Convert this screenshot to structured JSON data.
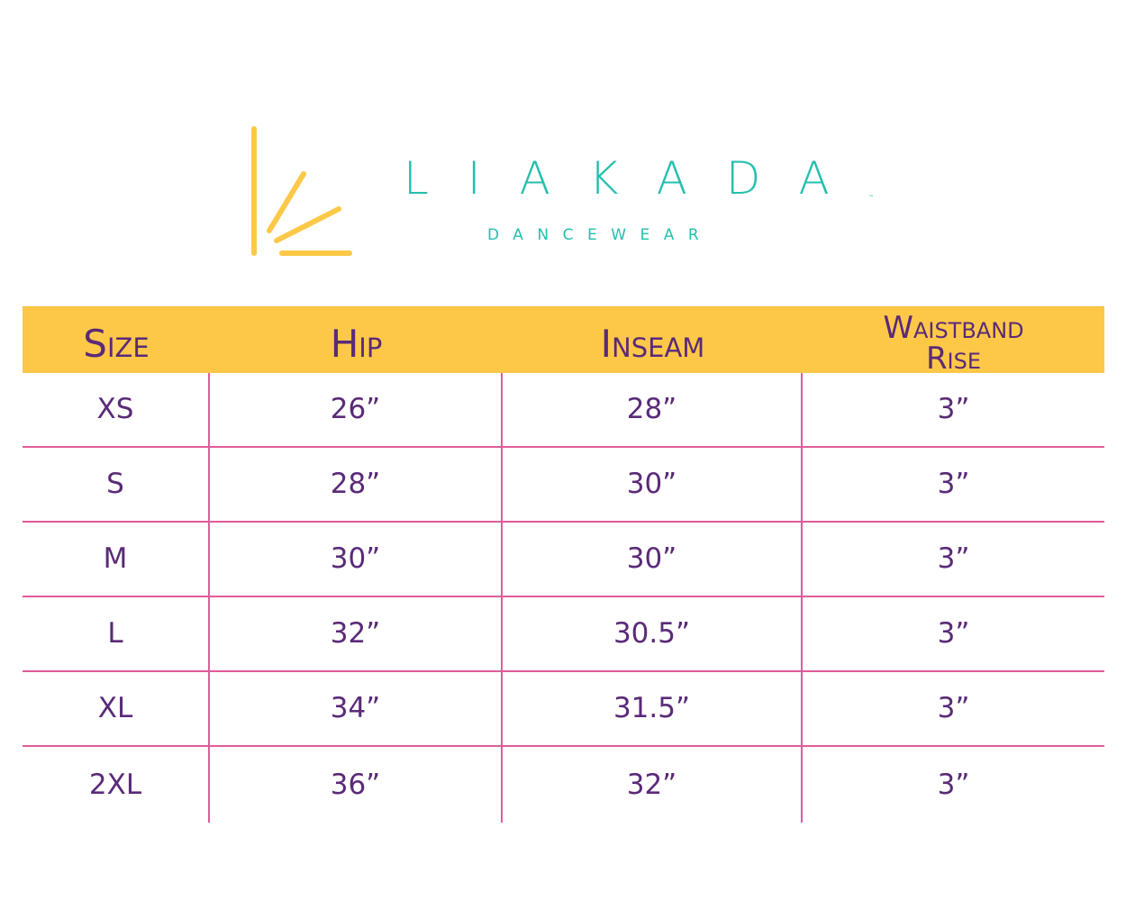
{
  "colors": {
    "teal": "#25bfae",
    "yellow": "#fdc848",
    "purple": "#5a2a78",
    "pink": "#e15b9a",
    "white": "#ffffff"
  },
  "logo": {
    "name": "LIAKADA",
    "trademark": "™",
    "subtitle": "DANCEWEAR",
    "mark_icon": "sunburst-rays-icon"
  },
  "table": {
    "headers": [
      "Size",
      "Hip",
      "Inseam",
      "Waistband Rise"
    ],
    "header_waistband": {
      "line1": "Waistband",
      "line2": "Rise"
    },
    "rows": [
      {
        "size": "XS",
        "hip": "26”",
        "inseam": "28”",
        "rise": "3”"
      },
      {
        "size": "S",
        "hip": "28”",
        "inseam": "30”",
        "rise": "3”"
      },
      {
        "size": "M",
        "hip": "30”",
        "inseam": "30”",
        "rise": "3”"
      },
      {
        "size": "L",
        "hip": "32”",
        "inseam": "30.5”",
        "rise": "3”"
      },
      {
        "size": "XL",
        "hip": "34”",
        "inseam": "31.5”",
        "rise": "3”"
      },
      {
        "size": "2XL",
        "hip": "36”",
        "inseam": "32”",
        "rise": "3”"
      }
    ]
  }
}
